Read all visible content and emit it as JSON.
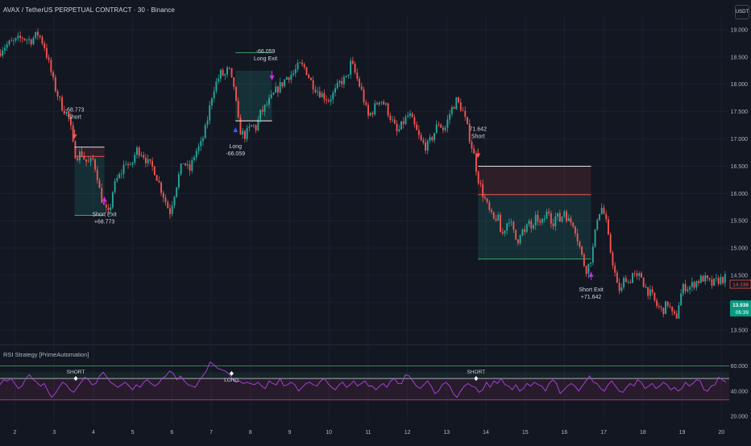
{
  "header": {
    "title": "AVAX / TetherUS PERPETUAL CONTRACT · 30 · Binance",
    "currency": "USDT"
  },
  "indicator": {
    "title": "RSI Strategy [PrimeAutomation]"
  },
  "colors": {
    "background": "#131722",
    "up": "#26a69a",
    "down": "#ef5350",
    "rsi_line": "#b042e0",
    "upper_band": "#3fa46a",
    "lower_band": "#c7407c",
    "signal_marker": "#d02de0",
    "price_label": "#089981"
  },
  "chart_data": [
    {
      "type": "candlestick",
      "title": "AVAX / TetherUS PERPETUAL CONTRACT · 30 · Binance",
      "x_ticks": [
        "2",
        "3",
        "4",
        "5",
        "6",
        "7",
        "8",
        "9",
        "10",
        "11",
        "12",
        "13",
        "14",
        "15",
        "16",
        "17",
        "18",
        "19",
        "20"
      ],
      "y_ticks": [
        "19.000",
        "18.500",
        "18.000",
        "17.500",
        "17.000",
        "16.500",
        "16.000",
        "15.500",
        "15.000",
        "14.500",
        "14.000",
        "13.500"
      ],
      "ylim": [
        13.35,
        19.25
      ],
      "xlim": [
        1.62,
        20.2
      ],
      "price_path": [
        [
          1.62,
          18.55
        ],
        [
          1.75,
          18.68
        ],
        [
          1.9,
          18.74
        ],
        [
          2.05,
          18.78
        ],
        [
          2.25,
          18.86
        ],
        [
          2.45,
          18.8
        ],
        [
          2.65,
          18.93
        ],
        [
          2.8,
          18.72
        ],
        [
          2.95,
          18.3
        ],
        [
          3.05,
          18.0
        ],
        [
          3.15,
          17.8
        ],
        [
          3.25,
          17.6
        ],
        [
          3.35,
          17.5
        ],
        [
          3.45,
          17.35
        ],
        [
          3.55,
          16.82
        ],
        [
          3.62,
          16.68
        ],
        [
          3.75,
          16.75
        ],
        [
          3.85,
          16.6
        ],
        [
          3.95,
          16.55
        ],
        [
          4.05,
          16.62
        ],
        [
          4.15,
          16.35
        ],
        [
          4.22,
          16.02
        ],
        [
          4.35,
          15.7
        ],
        [
          4.45,
          15.6
        ],
        [
          4.55,
          16.05
        ],
        [
          4.65,
          16.25
        ],
        [
          4.75,
          16.35
        ],
        [
          4.88,
          16.6
        ],
        [
          5.0,
          16.45
        ],
        [
          5.15,
          16.8
        ],
        [
          5.3,
          16.75
        ],
        [
          5.45,
          16.55
        ],
        [
          5.6,
          16.45
        ],
        [
          5.72,
          16.2
        ],
        [
          5.85,
          15.95
        ],
        [
          6.0,
          15.65
        ],
        [
          6.1,
          15.95
        ],
        [
          6.22,
          16.3
        ],
        [
          6.35,
          16.6
        ],
        [
          6.5,
          16.4
        ],
        [
          6.65,
          16.75
        ],
        [
          6.8,
          16.9
        ],
        [
          6.9,
          17.15
        ],
        [
          7.0,
          17.5
        ],
        [
          7.1,
          17.9
        ],
        [
          7.2,
          18.05
        ],
        [
          7.3,
          18.2
        ],
        [
          7.4,
          18.15
        ],
        [
          7.5,
          18.3
        ],
        [
          7.58,
          18.05
        ],
        [
          7.65,
          17.95
        ],
        [
          7.72,
          17.4
        ],
        [
          7.8,
          17.15
        ],
        [
          7.9,
          17.05
        ],
        [
          8.0,
          17.15
        ],
        [
          8.1,
          17.25
        ],
        [
          8.2,
          17.2
        ],
        [
          8.3,
          17.45
        ],
        [
          8.45,
          17.6
        ],
        [
          8.6,
          17.75
        ],
        [
          8.72,
          17.9
        ],
        [
          8.85,
          18.0
        ],
        [
          9.0,
          18.15
        ],
        [
          9.15,
          18.2
        ],
        [
          9.3,
          18.35
        ],
        [
          9.45,
          18.3
        ],
        [
          9.6,
          18.05
        ],
        [
          9.75,
          17.9
        ],
        [
          9.9,
          17.8
        ],
        [
          10.05,
          17.72
        ],
        [
          10.2,
          17.85
        ],
        [
          10.35,
          18.05
        ],
        [
          10.5,
          18.1
        ],
        [
          10.62,
          18.4
        ],
        [
          10.75,
          18.15
        ],
        [
          10.9,
          17.85
        ],
        [
          11.05,
          17.4
        ],
        [
          11.2,
          17.55
        ],
        [
          11.35,
          17.75
        ],
        [
          11.5,
          17.6
        ],
        [
          11.65,
          17.35
        ],
        [
          11.8,
          17.1
        ],
        [
          11.95,
          17.3
        ],
        [
          12.1,
          17.45
        ],
        [
          12.25,
          17.2
        ],
        [
          12.4,
          16.95
        ],
        [
          12.55,
          16.85
        ],
        [
          12.7,
          17.05
        ],
        [
          12.85,
          17.3
        ],
        [
          13.0,
          17.15
        ],
        [
          13.15,
          17.5
        ],
        [
          13.3,
          17.7
        ],
        [
          13.45,
          17.55
        ],
        [
          13.6,
          17.15
        ],
        [
          13.75,
          16.7
        ],
        [
          13.85,
          16.3
        ],
        [
          13.95,
          16.05
        ],
        [
          14.05,
          15.85
        ],
        [
          14.15,
          15.65
        ],
        [
          14.25,
          15.5
        ],
        [
          14.35,
          15.6
        ],
        [
          14.45,
          15.2
        ],
        [
          14.55,
          15.4
        ],
        [
          14.65,
          15.55
        ],
        [
          14.75,
          15.3
        ],
        [
          14.85,
          15.1
        ],
        [
          14.95,
          15.35
        ],
        [
          15.05,
          15.25
        ],
        [
          15.15,
          15.5
        ],
        [
          15.25,
          15.3
        ],
        [
          15.35,
          15.6
        ],
        [
          15.45,
          15.4
        ],
        [
          15.55,
          15.55
        ],
        [
          15.65,
          15.7
        ],
        [
          15.75,
          15.45
        ],
        [
          15.85,
          15.6
        ],
        [
          15.95,
          15.5
        ],
        [
          16.05,
          15.7
        ],
        [
          16.15,
          15.5
        ],
        [
          16.3,
          15.45
        ],
        [
          16.4,
          15.15
        ],
        [
          16.5,
          14.85
        ],
        [
          16.6,
          14.6
        ],
        [
          16.7,
          14.72
        ],
        [
          16.8,
          15.05
        ],
        [
          16.9,
          15.6
        ],
        [
          17.0,
          15.75
        ],
        [
          17.1,
          15.55
        ],
        [
          17.2,
          15.05
        ],
        [
          17.3,
          14.7
        ],
        [
          17.4,
          14.3
        ],
        [
          17.5,
          14.2
        ],
        [
          17.6,
          14.5
        ],
        [
          17.7,
          14.35
        ],
        [
          17.8,
          14.55
        ],
        [
          17.9,
          14.42
        ],
        [
          18.0,
          14.52
        ],
        [
          18.1,
          14.3
        ],
        [
          18.2,
          14.2
        ],
        [
          18.3,
          14.1
        ],
        [
          18.4,
          13.95
        ],
        [
          18.55,
          13.85
        ],
        [
          18.7,
          14.0
        ],
        [
          18.8,
          13.78
        ],
        [
          18.9,
          13.7
        ],
        [
          19.0,
          14.1
        ],
        [
          19.1,
          14.3
        ],
        [
          19.25,
          14.28
        ],
        [
          19.4,
          14.38
        ],
        [
          19.6,
          14.45
        ],
        [
          19.8,
          14.33
        ],
        [
          20.0,
          14.42
        ],
        [
          20.2,
          14.45
        ]
      ],
      "price_labels": {
        "last": "13.938",
        "countdown": "06:39",
        "marker": "14.338"
      },
      "trades": [
        {
          "side": "Short",
          "entry_label": "-68.773",
          "entry_name": "Short",
          "exit_name": "Short Exit",
          "exit_label": "+68.773",
          "entry_x": 3.52,
          "exit_x": 4.28,
          "entry_price": 16.85,
          "exit_price": 16.0,
          "stop": 16.68,
          "target": 15.6
        },
        {
          "side": "Long",
          "entry_label": "-66.059",
          "entry_name": "Long",
          "exit_name": "Long Exit",
          "exit_label": "-66.059",
          "entry_x": 7.62,
          "exit_x": 8.55,
          "entry_price": 17.33,
          "exit_price": 18.25,
          "stop": 17.33,
          "target": 18.58
        },
        {
          "side": "Short",
          "entry_label": "71.642",
          "entry_name": "Short",
          "exit_name": "Short Exit",
          "exit_label": "+71.642",
          "entry_x": 13.8,
          "exit_x": 16.68,
          "entry_price": 16.5,
          "exit_price": 14.62,
          "stop": 15.98,
          "target": 14.8
        }
      ]
    },
    {
      "type": "line",
      "title": "RSI Strategy [PrimeAutomation]",
      "y_ticks": [
        "60.000",
        "40.000",
        "20.000"
      ],
      "ylim": [
        15,
        66
      ],
      "bands": {
        "upper": 55,
        "mid": 50,
        "lower": 33
      },
      "series": [
        {
          "values": [
            45,
            49,
            48,
            50,
            46,
            42,
            44,
            50,
            53,
            49,
            47,
            44,
            46,
            40,
            35,
            38,
            43,
            47,
            45,
            41,
            39,
            43,
            47,
            51,
            49,
            45,
            46,
            52,
            55,
            51,
            47,
            45,
            43,
            45,
            47,
            44,
            41,
            45,
            43,
            47,
            49,
            46,
            44,
            46,
            50,
            52,
            56,
            54,
            49,
            52,
            48,
            45,
            44,
            43,
            48,
            52,
            56,
            63,
            61,
            58,
            57,
            56,
            54,
            50,
            47,
            48,
            46,
            47,
            46,
            45,
            47,
            44,
            42,
            48,
            46,
            45,
            50,
            44,
            45,
            47,
            45,
            40,
            43,
            46,
            47,
            45,
            44,
            48,
            50,
            46,
            43,
            41,
            45,
            47,
            43,
            45,
            48,
            44,
            46,
            48,
            44,
            44,
            41,
            44,
            46,
            43,
            48,
            50,
            46,
            46,
            53,
            52,
            48,
            44,
            42,
            45,
            48,
            44,
            38,
            40,
            45,
            47,
            44,
            38,
            35,
            40,
            44,
            46,
            44,
            43,
            39,
            41,
            47,
            43,
            48,
            46,
            50,
            45,
            44,
            41,
            45,
            40,
            42,
            46,
            44,
            47,
            45,
            44,
            40,
            46,
            49,
            46,
            38,
            41,
            44,
            46,
            44,
            40,
            44,
            48,
            52,
            47,
            46,
            42,
            40,
            45,
            48,
            44,
            40,
            39,
            43,
            46,
            44,
            49,
            47,
            42,
            44,
            46,
            42,
            44,
            47,
            45,
            41,
            43,
            40,
            42,
            47,
            44,
            46,
            49,
            48,
            41,
            40,
            44,
            45,
            51,
            49,
            47
          ]
        }
      ],
      "signals": [
        {
          "label": "SHORT",
          "x": 3.55,
          "y": 50
        },
        {
          "label": "LONG",
          "x": 7.52,
          "y": 54
        },
        {
          "label": "SHORT",
          "x": 13.75,
          "y": 50
        }
      ]
    }
  ]
}
